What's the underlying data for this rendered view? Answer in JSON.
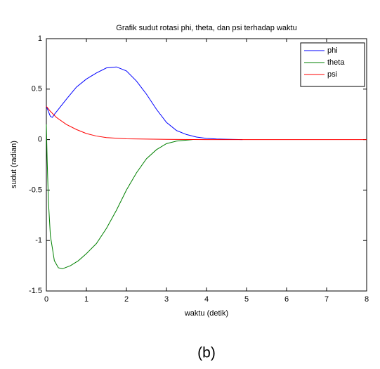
{
  "chart_data": {
    "type": "line",
    "title": "Grafik sudut rotasi phi, theta, dan psi terhadap waktu",
    "x_label": "waktu (detik)",
    "y_label": "sudut (radian)",
    "caption": "(b)",
    "xlim": [
      0,
      8
    ],
    "xticks": [
      0,
      1,
      2,
      3,
      4,
      5,
      6,
      7,
      8
    ],
    "ylim": [
      -1.5,
      1
    ],
    "yticks": [
      -1.5,
      -1,
      -0.5,
      0,
      0.5,
      1
    ],
    "grid": false,
    "legend": "upper right",
    "series": [
      {
        "name": "phi",
        "color": "#0000ff",
        "x": [
          0,
          0.05,
          0.1,
          0.15,
          0.2,
          0.3,
          0.5,
          0.75,
          1,
          1.25,
          1.5,
          1.75,
          2,
          2.25,
          2.5,
          2.75,
          3,
          3.25,
          3.5,
          3.75,
          4,
          4.25,
          4.5,
          4.9
        ],
        "values": [
          0.33,
          0.28,
          0.23,
          0.22,
          0.25,
          0.3,
          0.4,
          0.52,
          0.6,
          0.66,
          0.71,
          0.72,
          0.68,
          0.58,
          0.45,
          0.3,
          0.17,
          0.09,
          0.05,
          0.025,
          0.012,
          0.006,
          0.003,
          0.0
        ]
      },
      {
        "name": "theta",
        "color": "#008000",
        "x": [
          0,
          0.02,
          0.05,
          0.1,
          0.2,
          0.3,
          0.4,
          0.6,
          0.8,
          1,
          1.25,
          1.5,
          1.75,
          2,
          2.25,
          2.5,
          2.75,
          3,
          3.25,
          3.5,
          3.65
        ],
        "values": [
          0.15,
          -0.2,
          -0.6,
          -0.95,
          -1.2,
          -1.27,
          -1.28,
          -1.25,
          -1.2,
          -1.13,
          -1.03,
          -0.88,
          -0.7,
          -0.5,
          -0.33,
          -0.19,
          -0.1,
          -0.04,
          -0.015,
          -0.005,
          0
        ]
      },
      {
        "name": "psi",
        "color": "#ff0000",
        "x": [
          0,
          0.1,
          0.25,
          0.5,
          0.75,
          1,
          1.25,
          1.5,
          2,
          3,
          4,
          5,
          6,
          7,
          8
        ],
        "values": [
          0.33,
          0.28,
          0.22,
          0.15,
          0.1,
          0.06,
          0.035,
          0.02,
          0.008,
          0.002,
          0,
          0,
          0,
          0,
          0
        ]
      }
    ]
  }
}
